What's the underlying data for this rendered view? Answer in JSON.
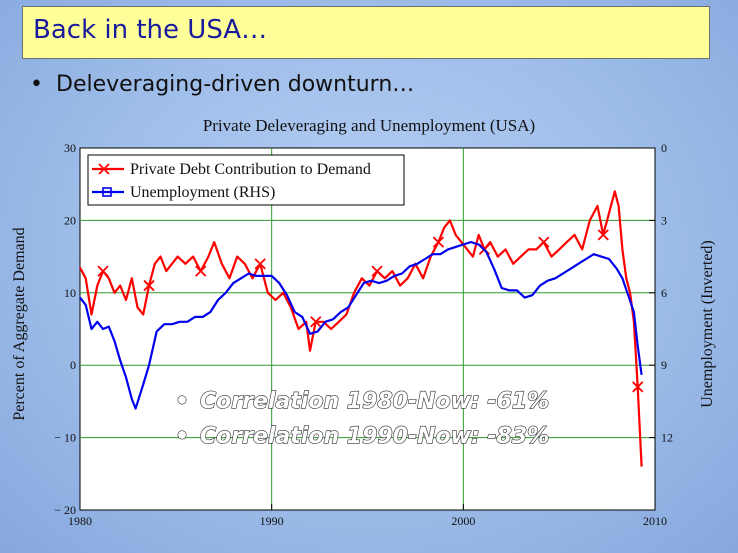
{
  "slide": {
    "title": "Back in the USA…",
    "bullet_symbol": "•",
    "bullet_text": "Deleveraging-driven downturn…",
    "colors": {
      "title_bg": "#ffff99",
      "title_text": "#1a1a9c"
    }
  },
  "chart_data": {
    "type": "line",
    "title": "Private Deleveraging and Unemployment (USA)",
    "ylabel_left": "Percent of Aggregate Demand",
    "ylabel_right": "Unemployment (Inverted)",
    "x_range": [
      1980,
      2010
    ],
    "x_ticks": [
      "1980",
      "1990",
      "2000",
      "2010"
    ],
    "ylim_left": [
      -20,
      30
    ],
    "y_ticks_left": [
      "30",
      "20",
      "10",
      "0",
      "− 10",
      "− 20"
    ],
    "ylim_right_inverted": [
      0,
      15
    ],
    "y_ticks_right": [
      "0",
      "3",
      "6",
      "9",
      "12"
    ],
    "grid": true,
    "legend_position": "top-left",
    "annotations": [
      {
        "bullet": "•",
        "text": "Correlation 1980-Now: -61%"
      },
      {
        "bullet": "•",
        "text": "Correlation 1990-Now: -83%"
      }
    ],
    "series": [
      {
        "name": "Private Debt Contribution to Demand",
        "axis": "left",
        "color": "#ff0000",
        "marker": "x",
        "x": [
          1980.0,
          1980.3,
          1980.6,
          1980.9,
          1981.2,
          1981.5,
          1981.8,
          1982.1,
          1982.4,
          1982.7,
          1983.0,
          1983.3,
          1983.6,
          1983.9,
          1984.2,
          1984.5,
          1984.8,
          1985.1,
          1985.5,
          1985.9,
          1986.3,
          1986.7,
          1987.0,
          1987.4,
          1987.8,
          1988.2,
          1988.6,
          1989.0,
          1989.4,
          1989.8,
          1990.2,
          1990.6,
          1991.0,
          1991.4,
          1991.8,
          1992.0,
          1992.3,
          1992.7,
          1993.1,
          1993.5,
          1993.9,
          1994.3,
          1994.7,
          1995.1,
          1995.5,
          1995.9,
          1996.3,
          1996.7,
          1997.1,
          1997.5,
          1997.9,
          1998.3,
          1998.7,
          1999.0,
          1999.3,
          1999.6,
          1999.9,
          2000.2,
          2000.5,
          2000.8,
          2001.1,
          2001.4,
          2001.8,
          2002.2,
          2002.6,
          2003.0,
          2003.4,
          2003.8,
          2004.2,
          2004.6,
          2005.0,
          2005.4,
          2005.8,
          2006.2,
          2006.6,
          2007.0,
          2007.3,
          2007.6,
          2007.9,
          2008.1,
          2008.3,
          2008.5,
          2008.7,
          2008.9,
          2009.1,
          2009.3
        ],
        "values": [
          13.5,
          12,
          7,
          11,
          13,
          12,
          10,
          11,
          9,
          12,
          8,
          7,
          11,
          14,
          15,
          13,
          14,
          15,
          14,
          15,
          13,
          15,
          17,
          14,
          12,
          15,
          14,
          12,
          14,
          10,
          9,
          10,
          8,
          5,
          6,
          2,
          6,
          6,
          5,
          6,
          7,
          10,
          12,
          11,
          13,
          12,
          13,
          11,
          12,
          14,
          12,
          15,
          17,
          19,
          20,
          18,
          17,
          16,
          15,
          18,
          16,
          17,
          15,
          16,
          14,
          15,
          16,
          16,
          17,
          15,
          16,
          17,
          18,
          16,
          20,
          22,
          18,
          21,
          24,
          22,
          16,
          12,
          10,
          6,
          -3,
          -14
        ]
      },
      {
        "name": "Unemployment (RHS)",
        "axis": "right",
        "color": "#0000ee",
        "marker": "square",
        "x": [
          1980.0,
          1980.3,
          1980.6,
          1980.9,
          1981.2,
          1981.5,
          1981.8,
          1982.1,
          1982.4,
          1982.7,
          1982.9,
          1983.1,
          1983.3,
          1983.6,
          1984.0,
          1984.4,
          1984.8,
          1985.2,
          1985.6,
          1986.0,
          1986.4,
          1986.8,
          1987.2,
          1987.6,
          1988.0,
          1988.4,
          1988.8,
          1989.2,
          1989.6,
          1990.0,
          1990.4,
          1990.8,
          1991.2,
          1991.6,
          1992.0,
          1992.4,
          1992.8,
          1993.2,
          1993.6,
          1994.0,
          1994.4,
          1994.8,
          1995.2,
          1995.6,
          1996.0,
          1996.4,
          1996.8,
          1997.2,
          1997.6,
          1998.0,
          1998.4,
          1998.8,
          1999.2,
          1999.6,
          2000.0,
          2000.4,
          2000.8,
          2001.2,
          2001.6,
          2002.0,
          2002.4,
          2002.8,
          2003.2,
          2003.6,
          2004.0,
          2004.4,
          2004.8,
          2005.2,
          2005.6,
          2006.0,
          2006.4,
          2006.8,
          2007.2,
          2007.6,
          2008.0,
          2008.3,
          2008.6,
          2008.9,
          2009.1,
          2009.3
        ],
        "values": [
          6.2,
          6.5,
          7.5,
          7.2,
          7.5,
          7.4,
          8.0,
          8.8,
          9.5,
          10.4,
          10.8,
          10.3,
          9.8,
          9.0,
          7.6,
          7.3,
          7.3,
          7.2,
          7.2,
          7.0,
          7.0,
          6.8,
          6.3,
          6.0,
          5.6,
          5.4,
          5.2,
          5.3,
          5.3,
          5.3,
          5.6,
          6.1,
          6.8,
          7.0,
          7.7,
          7.6,
          7.2,
          7.1,
          6.8,
          6.6,
          6.1,
          5.6,
          5.5,
          5.6,
          5.5,
          5.3,
          5.2,
          4.9,
          4.8,
          4.6,
          4.4,
          4.4,
          4.2,
          4.1,
          4.0,
          3.9,
          4.0,
          4.3,
          5.0,
          5.8,
          5.9,
          5.9,
          6.2,
          6.1,
          5.7,
          5.5,
          5.4,
          5.2,
          5.0,
          4.8,
          4.6,
          4.4,
          4.5,
          4.6,
          5.0,
          5.4,
          6.1,
          6.8,
          8.2,
          9.4
        ]
      }
    ]
  }
}
